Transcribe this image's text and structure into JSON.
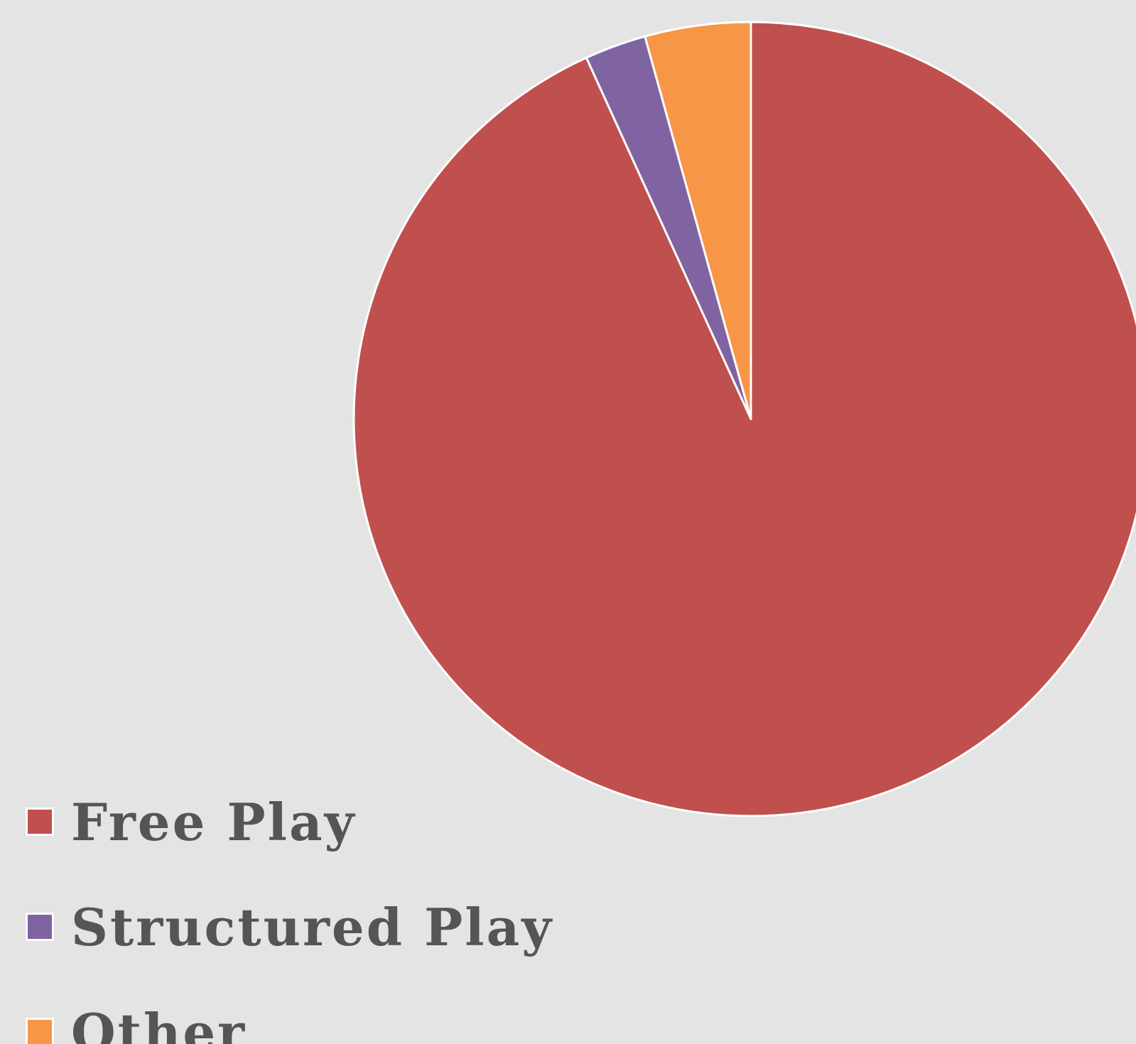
{
  "chart_data": {
    "type": "pie",
    "slices": [
      {
        "label": "Free Play",
        "value": 93.2,
        "color": "#c0504d"
      },
      {
        "label": "Structured Play",
        "value": 2.5,
        "color": "#8064a2"
      },
      {
        "label": "Other",
        "value": 4.3,
        "color": "#f79646"
      }
    ],
    "start_angle": "12 o'clock",
    "direction": "clockwise",
    "legend_position": "bottom-left",
    "slice_border_color": "#ffffff"
  },
  "legend": {
    "items": [
      {
        "label": "Free Play",
        "color": "#c0504d"
      },
      {
        "label": "Structured Play",
        "color": "#8064a2"
      },
      {
        "label": "Other",
        "color": "#f79646"
      }
    ]
  },
  "background_color": "#e4e4e4"
}
